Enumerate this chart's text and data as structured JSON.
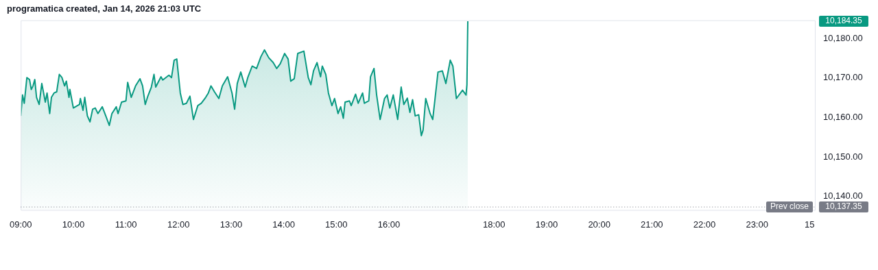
{
  "chart_data": {
    "type": "area",
    "title": "programatica created, Jan 14, 2026 21:03 UTC",
    "x": [
      "2026-01-14T09:00",
      "2026-01-14T09:02",
      "2026-01-14T09:04",
      "2026-01-14T09:07",
      "2026-01-14T09:10",
      "2026-01-14T09:12",
      "2026-01-14T09:14",
      "2026-01-14T09:16",
      "2026-01-14T09:18",
      "2026-01-14T09:21",
      "2026-01-14T09:24",
      "2026-01-14T09:28",
      "2026-01-14T09:30",
      "2026-01-14T09:33",
      "2026-01-14T09:35",
      "2026-01-14T09:38",
      "2026-01-14T09:41",
      "2026-01-14T09:44",
      "2026-01-14T09:47",
      "2026-01-14T09:50",
      "2026-01-14T09:52",
      "2026-01-14T09:55",
      "2026-01-14T09:56",
      "2026-01-14T10:00",
      "2026-01-14T10:07",
      "2026-01-14T10:08",
      "2026-01-14T10:11",
      "2026-01-14T10:13",
      "2026-01-14T10:16",
      "2026-01-14T10:19",
      "2026-01-14T10:22",
      "2026-01-14T10:25",
      "2026-01-14T10:28",
      "2026-01-14T10:33",
      "2026-01-14T10:37",
      "2026-01-14T10:41",
      "2026-01-14T10:44",
      "2026-01-14T10:49",
      "2026-01-14T10:51",
      "2026-01-14T10:55",
      "2026-01-14T11:00",
      "2026-01-14T11:02",
      "2026-01-14T11:06",
      "2026-01-14T11:11",
      "2026-01-14T11:16",
      "2026-01-14T11:19",
      "2026-01-14T11:22",
      "2026-01-14T11:25",
      "2026-01-14T11:29",
      "2026-01-14T11:32",
      "2026-01-14T11:34",
      "2026-01-14T11:40",
      "2026-01-14T11:42",
      "2026-01-14T11:49",
      "2026-01-14T11:52",
      "2026-01-14T11:55",
      "2026-01-14T11:58",
      "2026-01-14T12:02",
      "2026-01-14T12:05",
      "2026-01-14T12:09",
      "2026-01-14T12:13",
      "2026-01-14T12:17",
      "2026-01-14T12:22",
      "2026-01-14T12:26",
      "2026-01-14T12:31",
      "2026-01-14T12:34",
      "2026-01-14T12:37",
      "2026-01-14T12:41",
      "2026-01-14T12:46",
      "2026-01-14T12:50",
      "2026-01-14T12:56",
      "2026-01-14T13:01",
      "2026-01-14T13:04",
      "2026-01-14T13:07",
      "2026-01-14T13:11",
      "2026-01-14T13:16",
      "2026-01-14T13:19",
      "2026-01-14T13:24",
      "2026-01-14T13:29",
      "2026-01-14T13:34",
      "2026-01-14T13:38",
      "2026-01-14T13:43",
      "2026-01-14T13:48",
      "2026-01-14T13:52",
      "2026-01-14T13:56",
      "2026-01-14T14:01",
      "2026-01-14T14:05",
      "2026-01-14T14:08",
      "2026-01-14T14:12",
      "2026-01-14T14:16",
      "2026-01-14T14:23",
      "2026-01-14T14:28",
      "2026-01-14T14:31",
      "2026-01-14T14:34",
      "2026-01-14T14:38",
      "2026-01-14T14:42",
      "2026-01-14T14:44",
      "2026-01-14T14:48",
      "2026-01-14T14:51",
      "2026-01-14T14:55",
      "2026-01-14T14:58",
      "2026-01-14T15:02",
      "2026-01-14T15:05",
      "2026-01-14T15:08",
      "2026-01-14T15:10",
      "2026-01-14T15:15",
      "2026-01-14T15:17",
      "2026-01-14T15:22",
      "2026-01-14T15:25",
      "2026-01-14T15:30",
      "2026-01-14T15:32",
      "2026-01-14T15:37",
      "2026-01-14T15:39",
      "2026-01-14T15:43",
      "2026-01-14T15:46",
      "2026-01-14T15:50",
      "2026-01-14T15:55",
      "2026-01-14T15:58",
      "2026-01-14T16:01",
      "2026-01-14T16:05",
      "2026-01-14T16:10",
      "2026-01-14T16:14",
      "2026-01-14T16:17",
      "2026-01-14T16:21",
      "2026-01-14T16:24",
      "2026-01-14T16:27",
      "2026-01-14T16:30",
      "2026-01-14T16:34",
      "2026-01-14T16:37",
      "2026-01-14T16:39",
      "2026-01-14T16:42",
      "2026-01-14T16:47",
      "2026-01-14T16:50",
      "2026-01-14T16:56",
      "2026-01-14T17:01",
      "2026-01-14T17:05",
      "2026-01-14T17:10",
      "2026-01-14T17:13",
      "2026-01-14T17:17",
      "2026-01-14T17:24",
      "2026-01-14T17:28",
      "2026-01-14T17:29",
      "2026-01-14T17:30"
    ],
    "series": [
      {
        "color": "#089981",
        "values": [
          10160.4,
          10165.7,
          10163.6,
          10170.1,
          10169.6,
          10167.1,
          10168.0,
          10169.6,
          10165.1,
          10163.3,
          10168.6,
          10163.9,
          10166.2,
          10161.0,
          10165.1,
          10166.2,
          10166.5,
          10170.9,
          10170.1,
          10168.0,
          10169.2,
          10165.1,
          10167.1,
          10162.4,
          10163.3,
          10164.8,
          10161.8,
          10165.1,
          10160.4,
          10158.9,
          10162.1,
          10162.4,
          10161.0,
          10162.7,
          10160.4,
          10158.0,
          10161.0,
          10162.7,
          10161.0,
          10163.9,
          10164.2,
          10168.9,
          10165.1,
          10168.0,
          10169.8,
          10168.0,
          10163.3,
          10165.4,
          10167.7,
          10170.9,
          10167.7,
          10170.3,
          10169.5,
          10170.7,
          10170.1,
          10174.5,
          10174.8,
          10166.2,
          10163.3,
          10163.6,
          10165.4,
          10159.5,
          10163.0,
          10163.6,
          10165.1,
          10166.2,
          10168.0,
          10166.5,
          10164.8,
          10168.0,
          10170.3,
          10166.2,
          10162.1,
          10168.6,
          10171.5,
          10167.7,
          10170.1,
          10173.0,
          10172.4,
          10175.4,
          10177.1,
          10175.1,
          10173.9,
          10172.4,
          10173.6,
          10176.2,
          10174.8,
          10169.2,
          10169.8,
          10176.2,
          10176.8,
          10170.1,
          10168.3,
          10171.8,
          10173.9,
          10170.3,
          10173.0,
          10170.9,
          10166.2,
          10163.0,
          10164.8,
          10161.0,
          10162.7,
          10159.8,
          10163.9,
          10164.2,
          10163.0,
          10165.9,
          10163.6,
          10166.2,
          10163.6,
          10164.2,
          10170.3,
          10172.4,
          10165.7,
          10159.5,
          10164.8,
          10165.7,
          10162.4,
          10165.7,
          10159.5,
          10167.7,
          10163.3,
          10164.9,
          10161.3,
          10164.5,
          10160.4,
          10160.7,
          10155.4,
          10156.8,
          10164.8,
          10161.0,
          10159.5,
          10171.5,
          10171.8,
          10168.6,
          10174.5,
          10173.0,
          10164.8,
          10166.9,
          10165.7,
          10168.3,
          10184.35
        ]
      }
    ],
    "xlim": [
      "2026-01-14T09:00",
      "2026-01-15T00:06"
    ],
    "xticks": [
      {
        "value": "2026-01-14T09:00",
        "label": "09:00"
      },
      {
        "value": "2026-01-14T10:00",
        "label": "10:00"
      },
      {
        "value": "2026-01-14T11:00",
        "label": "11:00"
      },
      {
        "value": "2026-01-14T12:00",
        "label": "12:00"
      },
      {
        "value": "2026-01-14T13:00",
        "label": "13:00"
      },
      {
        "value": "2026-01-14T14:00",
        "label": "14:00"
      },
      {
        "value": "2026-01-14T15:00",
        "label": "15:00"
      },
      {
        "value": "2026-01-14T16:00",
        "label": "16:00"
      },
      {
        "value": "2026-01-14T18:00",
        "label": "18:00"
      },
      {
        "value": "2026-01-14T19:00",
        "label": "19:00"
      },
      {
        "value": "2026-01-14T20:00",
        "label": "20:00"
      },
      {
        "value": "2026-01-14T21:00",
        "label": "21:00"
      },
      {
        "value": "2026-01-14T22:00",
        "label": "22:00"
      },
      {
        "value": "2026-01-14T23:00",
        "label": "23:00"
      },
      {
        "value": "2026-01-15",
        "label": "15"
      }
    ],
    "ylim": [
      10136.6,
      10184.6
    ],
    "yticks": [
      {
        "value": 10140,
        "label": "10,140.00"
      },
      {
        "value": 10150,
        "label": "10,150.00"
      },
      {
        "value": 10160,
        "label": "10,160.00"
      },
      {
        "value": 10170,
        "label": "10,170.00"
      },
      {
        "value": 10180,
        "label": "10,180.00"
      }
    ],
    "ref_lines": [
      {
        "axis": "y",
        "value": 10137.35,
        "label": "Prev close",
        "color": "#787b86",
        "line_style": "dotted"
      }
    ],
    "annotations": [
      "10,184.35",
      {
        "text": "10,137.35",
        "x": "2026-01-15T00:06",
        "y": 10137.35
      }
    ],
    "grid": false,
    "legend": false,
    "marker": "none"
  }
}
